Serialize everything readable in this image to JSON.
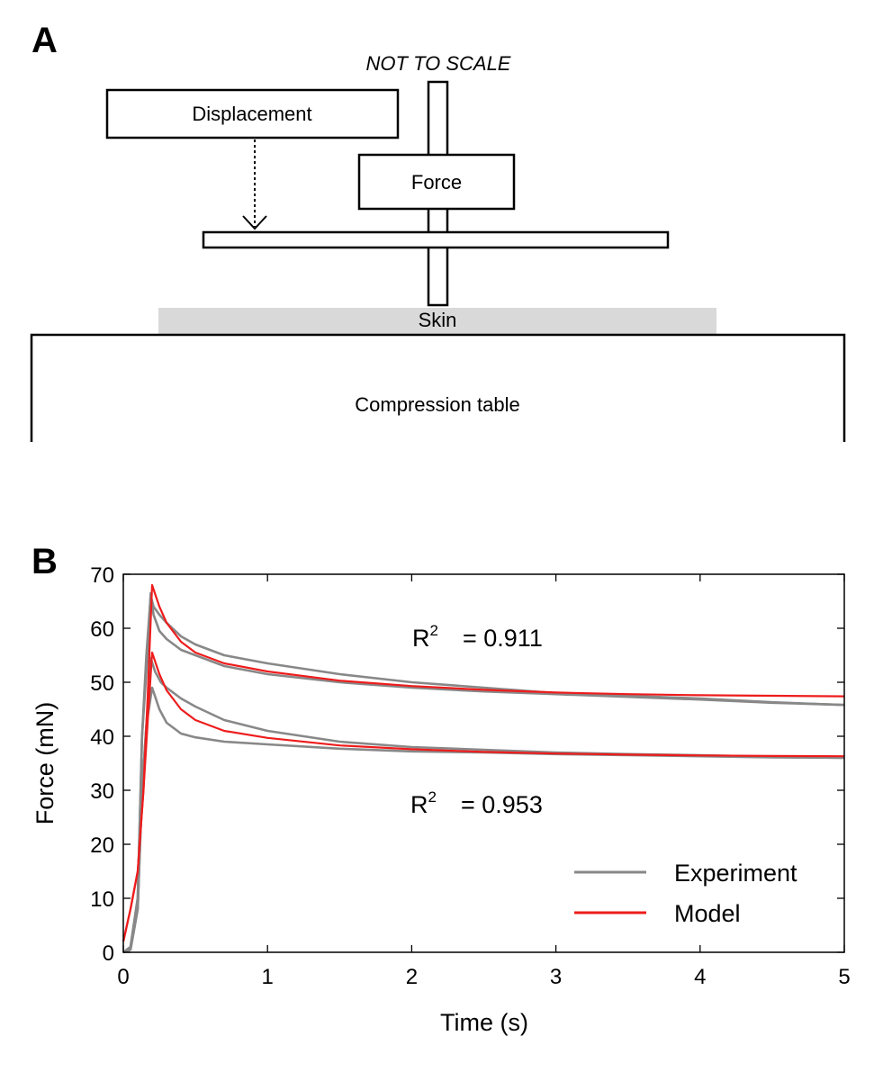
{
  "panel_a": {
    "label": "A",
    "note": "NOT TO SCALE",
    "displacement_label": "Displacement",
    "force_label": "Force",
    "skin_label": "Skin",
    "table_label": "Compression table"
  },
  "panel_b": {
    "label": "B",
    "r2_top": {
      "prefix": "R",
      "exponent": "2",
      "value": "= 0.911"
    },
    "r2_bottom": {
      "prefix": "R",
      "exponent": "2",
      "value": "= 0.953"
    }
  },
  "colors": {
    "experiment": "#888888",
    "model": "#ee1c1c",
    "skin": "#d9d9d9"
  },
  "chart_data": {
    "type": "line",
    "title": "",
    "xlabel": "Time (s)",
    "ylabel": "Force (mN)",
    "xlim": [
      0,
      5
    ],
    "ylim": [
      0,
      70
    ],
    "xticks": [
      0,
      1,
      2,
      3,
      4,
      5
    ],
    "yticks": [
      0,
      10,
      20,
      30,
      40,
      50,
      60,
      70
    ],
    "grid": false,
    "legend_position": "bottom-right",
    "legend": [
      "Experiment",
      "Model"
    ],
    "series": [
      {
        "name": "Experiment",
        "color": "#888888",
        "x": [
          0,
          0.05,
          0.1,
          0.13,
          0.16,
          0.19,
          0.21,
          0.25,
          0.3,
          0.4,
          0.5,
          0.7,
          1.0,
          1.5,
          2.0,
          2.5,
          3.0,
          3.5,
          4.0,
          4.5,
          5.0
        ],
        "y": [
          0,
          1,
          10,
          40,
          55,
          66,
          64,
          62.5,
          61,
          58.5,
          57,
          55,
          53.5,
          51.5,
          50,
          49,
          48,
          47.5,
          47,
          46.3,
          45.8
        ]
      },
      {
        "name": "Experiment",
        "color": "#888888",
        "x": [
          0,
          0.05,
          0.1,
          0.13,
          0.16,
          0.19,
          0.21,
          0.25,
          0.3,
          0.4,
          0.5,
          0.7,
          1.0,
          1.5,
          2.0,
          2.5,
          3.0,
          3.5,
          4.0,
          4.5,
          5.0
        ],
        "y": [
          0,
          1,
          10,
          40,
          52,
          66.5,
          62.5,
          59.5,
          58,
          56,
          55,
          53,
          51.5,
          50,
          49,
          48.3,
          47.8,
          47.3,
          46.8,
          46.2,
          45.8
        ]
      },
      {
        "name": "Experiment",
        "color": "#888888",
        "x": [
          0,
          0.05,
          0.1,
          0.13,
          0.16,
          0.19,
          0.22,
          0.26,
          0.3,
          0.4,
          0.5,
          0.7,
          1.0,
          1.5,
          2.0,
          2.5,
          3.0,
          3.5,
          4.0,
          4.5,
          5.0
        ],
        "y": [
          0,
          0.5,
          8,
          30,
          42,
          54.5,
          52,
          50,
          49,
          47,
          45.5,
          43,
          41,
          39,
          38,
          37.5,
          37,
          36.7,
          36.5,
          36.2,
          36
        ]
      },
      {
        "name": "Experiment",
        "color": "#888888",
        "x": [
          0,
          0.05,
          0.1,
          0.13,
          0.16,
          0.2,
          0.25,
          0.3,
          0.4,
          0.5,
          0.7,
          1.0,
          1.5,
          2.0,
          2.5,
          3.0,
          3.5,
          4.0,
          4.5,
          5.0
        ],
        "y": [
          0,
          0.5,
          8,
          30,
          42,
          49,
          45,
          42.5,
          40.5,
          39.8,
          39,
          38.5,
          37.7,
          37.2,
          37,
          36.7,
          36.5,
          36.3,
          36.1,
          36
        ]
      },
      {
        "name": "Model",
        "color": "#ee1c1c",
        "x": [
          0,
          0.05,
          0.1,
          0.14,
          0.17,
          0.2,
          0.25,
          0.3,
          0.4,
          0.5,
          0.7,
          1.0,
          1.5,
          2.0,
          2.5,
          3.0,
          3.5,
          4.0,
          4.5,
          5.0
        ],
        "y": [
          2,
          8,
          15,
          30,
          48,
          68,
          64,
          61,
          57.5,
          55.5,
          53.5,
          52,
          50.3,
          49.3,
          48.6,
          48.1,
          47.8,
          47.6,
          47.5,
          47.4
        ]
      },
      {
        "name": "Model",
        "color": "#ee1c1c",
        "x": [
          0,
          0.05,
          0.1,
          0.14,
          0.17,
          0.2,
          0.25,
          0.3,
          0.4,
          0.5,
          0.7,
          1.0,
          1.5,
          2.0,
          2.5,
          3.0,
          3.5,
          4.0,
          4.5,
          5.0
        ],
        "y": [
          2,
          8,
          15,
          30,
          43,
          55.5,
          51.5,
          48.5,
          45,
          43,
          41,
          39.7,
          38.3,
          37.6,
          37.1,
          36.8,
          36.6,
          36.45,
          36.35,
          36.3
        ]
      }
    ]
  }
}
